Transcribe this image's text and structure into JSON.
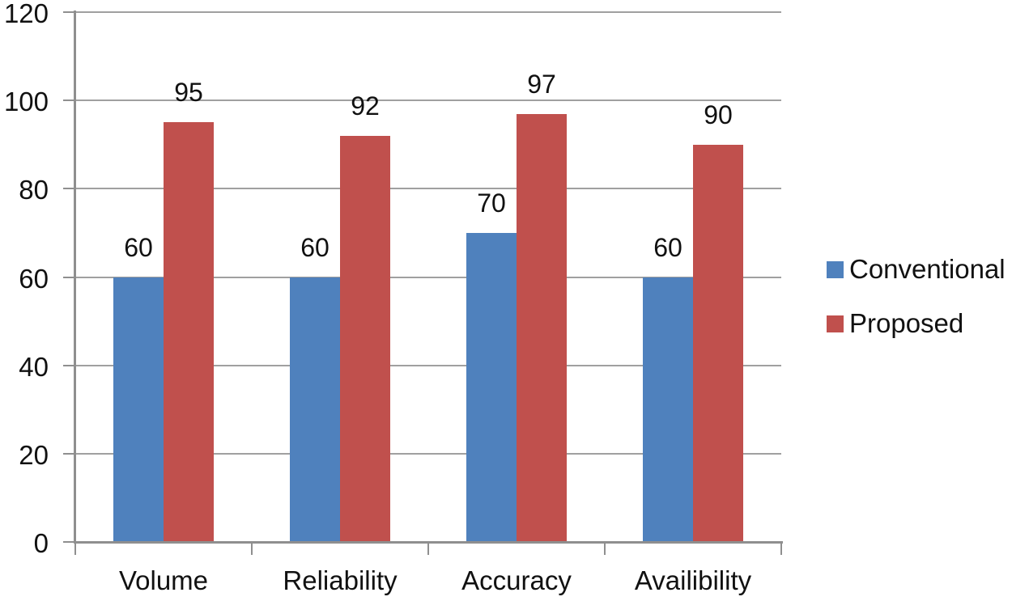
{
  "chart_data": {
    "type": "bar",
    "title": "",
    "xlabel": "",
    "ylabel": "",
    "categories": [
      "Volume",
      "Reliability",
      "Accuracy",
      "Availibility"
    ],
    "series": [
      {
        "name": "Conventional",
        "color": "#4F81BD",
        "values": [
          60,
          60,
          70,
          60
        ]
      },
      {
        "name": "Proposed",
        "color": "#C0504D",
        "values": [
          95,
          92,
          97,
          90
        ]
      }
    ],
    "data_labels": [
      {
        "series": "Conventional",
        "labels": [
          "60",
          "60",
          "70",
          "60"
        ]
      },
      {
        "series": "Proposed",
        "labels": [
          "95",
          "92",
          "97",
          "90"
        ]
      }
    ],
    "ylim": [
      0,
      120
    ],
    "yticks": [
      0,
      20,
      40,
      60,
      80,
      100,
      120
    ],
    "ytick_labels": [
      "0",
      "20",
      "40",
      "60",
      "80",
      "100",
      "120"
    ],
    "grid": true,
    "legend_position": "right",
    "colors": {
      "gridline": "#a0a0a0",
      "axis": "#8f8f8f",
      "text": "#111111",
      "background": "#ffffff"
    }
  }
}
